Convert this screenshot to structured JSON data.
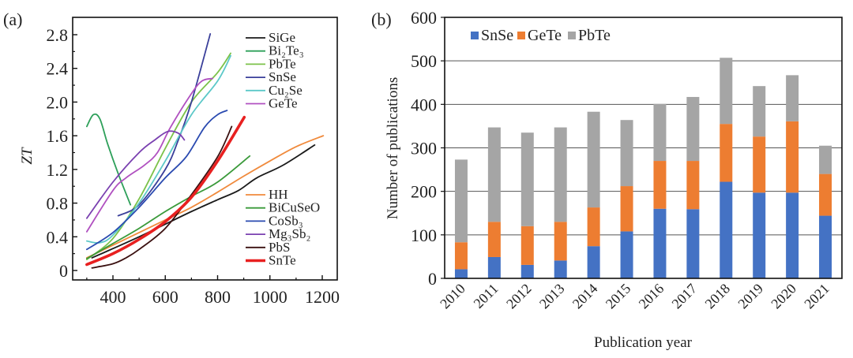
{
  "chart_data": [
    {
      "type": "line",
      "panel_label": "(a)",
      "title": "",
      "xlabel": "",
      "ylabel": "ZT",
      "xlim": [
        247,
        1256
      ],
      "ylim": [
        -0.1,
        3.0
      ],
      "xticks": [
        400,
        600,
        800,
        1000,
        1200
      ],
      "xtick_labels": [
        "400",
        "600",
        "800",
        "1000",
        "1200"
      ],
      "yticks": [
        0,
        0.4,
        0.8,
        1.2,
        1.6,
        2.0,
        2.4,
        2.8
      ],
      "ytick_labels": [
        "0",
        "0.4",
        "0.8",
        "1.2",
        "1.6",
        "2.0",
        "2.4",
        "2.8"
      ],
      "grid": false,
      "legend_placement": [
        "top-right",
        "bottom-right"
      ],
      "series": [
        {
          "name": "SiGe",
          "sub": "",
          "color": "#1a1a1a",
          "legend_group": 0,
          "points": [
            [
              320,
              0.15
            ],
            [
              400,
              0.26
            ],
            [
              500,
              0.4
            ],
            [
              600,
              0.55
            ],
            [
              700,
              0.7
            ],
            [
              800,
              0.84
            ],
            [
              880,
              0.95
            ],
            [
              950,
              1.1
            ],
            [
              1050,
              1.25
            ],
            [
              1171,
              1.49
            ]
          ]
        },
        {
          "name": "Bi₂Te₃",
          "color": "#2ea05a",
          "legend_group": 0,
          "points": [
            [
              300,
              1.71
            ],
            [
              325,
              1.85
            ],
            [
              350,
              1.8
            ],
            [
              380,
              1.5
            ],
            [
              420,
              1.15
            ],
            [
              467,
              0.78
            ]
          ]
        },
        {
          "name": "PbTe",
          "color": "#7cc24a",
          "legend_group": 0,
          "points": [
            [
              300,
              0.13
            ],
            [
              400,
              0.38
            ],
            [
              500,
              0.85
            ],
            [
              600,
              1.45
            ],
            [
              700,
              2.0
            ],
            [
              800,
              2.35
            ],
            [
              850,
              2.58
            ]
          ]
        },
        {
          "name": "SnSe",
          "color": "#3a3f9a",
          "legend_group": 0,
          "points": [
            [
              420,
              0.65
            ],
            [
              500,
              0.78
            ],
            [
              600,
              1.2
            ],
            [
              650,
              1.55
            ],
            [
              700,
              2.0
            ],
            [
              772,
              2.81
            ]
          ]
        },
        {
          "name": "Cu₂Se",
          "color": "#5cc8c8",
          "legend_group": 0,
          "points": [
            [
              300,
              0.35
            ],
            [
              350,
              0.33
            ],
            [
              400,
              0.42
            ],
            [
              500,
              0.8
            ],
            [
              600,
              1.3
            ],
            [
              700,
              1.85
            ],
            [
              800,
              2.25
            ],
            [
              850,
              2.55
            ]
          ]
        },
        {
          "name": "GeTe",
          "color": "#b050c0",
          "legend_group": 0,
          "points": [
            [
              300,
              0.46
            ],
            [
              400,
              0.95
            ],
            [
              450,
              1.1
            ],
            [
              520,
              1.25
            ],
            [
              570,
              1.4
            ],
            [
              620,
              1.7
            ],
            [
              700,
              2.1
            ],
            [
              740,
              2.25
            ],
            [
              781,
              2.28
            ]
          ]
        },
        {
          "name": "HH",
          "color": "#f08a3c",
          "legend_group": 1,
          "points": [
            [
              300,
              0.15
            ],
            [
              400,
              0.3
            ],
            [
              500,
              0.45
            ],
            [
              600,
              0.6
            ],
            [
              700,
              0.75
            ],
            [
              800,
              0.93
            ],
            [
              900,
              1.12
            ],
            [
              1000,
              1.3
            ],
            [
              1100,
              1.47
            ],
            [
              1204,
              1.6
            ]
          ]
        },
        {
          "name": "BiCuSeO",
          "color": "#3a9a3a",
          "legend_group": 1,
          "points": [
            [
              300,
              0.14
            ],
            [
              400,
              0.32
            ],
            [
              500,
              0.5
            ],
            [
              600,
              0.7
            ],
            [
              700,
              0.88
            ],
            [
              800,
              1.05
            ],
            [
              923,
              1.36
            ]
          ]
        },
        {
          "name": "CoSb₃",
          "color": "#2a4ab0",
          "legend_group": 1,
          "points": [
            [
              300,
              0.25
            ],
            [
              400,
              0.45
            ],
            [
              500,
              0.75
            ],
            [
              600,
              1.1
            ],
            [
              680,
              1.35
            ],
            [
              750,
              1.7
            ],
            [
              800,
              1.85
            ],
            [
              836,
              1.9
            ]
          ]
        },
        {
          "name": "Mg₃Sb₂",
          "color": "#7a40b0",
          "legend_group": 1,
          "points": [
            [
              300,
              0.62
            ],
            [
              400,
              1.05
            ],
            [
              500,
              1.4
            ],
            [
              560,
              1.55
            ],
            [
              609,
              1.65
            ],
            [
              650,
              1.63
            ],
            [
              673,
              1.55
            ]
          ]
        },
        {
          "name": "PbS",
          "color": "#3a1010",
          "legend_group": 1,
          "points": [
            [
              320,
              0.03
            ],
            [
              400,
              0.08
            ],
            [
              450,
              0.15
            ],
            [
              500,
              0.25
            ],
            [
              600,
              0.5
            ],
            [
              700,
              0.9
            ],
            [
              800,
              1.35
            ],
            [
              854,
              1.71
            ]
          ]
        },
        {
          "name": "SnTe",
          "color": "#e82020",
          "legend_group": 1,
          "bold": true,
          "points": [
            [
              300,
              0.07
            ],
            [
              400,
              0.2
            ],
            [
              500,
              0.37
            ],
            [
              600,
              0.58
            ],
            [
              700,
              0.87
            ],
            [
              800,
              1.3
            ],
            [
              902,
              1.82
            ]
          ]
        }
      ]
    },
    {
      "type": "bar",
      "stacked": true,
      "panel_label": "(b)",
      "title": "",
      "xlabel": "Publication year",
      "ylabel": "Number of publications",
      "ylim": [
        0,
        600
      ],
      "yticks": [
        0,
        100,
        200,
        300,
        400,
        500,
        600
      ],
      "ytick_labels": [
        "0",
        "100",
        "200",
        "300",
        "400",
        "500",
        "600"
      ],
      "grid": true,
      "legend_placement": "top-left",
      "categories": [
        "2010",
        "2011",
        "2012",
        "2013",
        "2014",
        "2015",
        "2016",
        "2017",
        "2018",
        "2019",
        "2020",
        "2021"
      ],
      "series": [
        {
          "name": "SnSe",
          "color": "#4472c4",
          "values": [
            21,
            49,
            31,
            41,
            74,
            108,
            160,
            159,
            222,
            197,
            197,
            144
          ]
        },
        {
          "name": "GeTe",
          "color": "#ed7d31",
          "values": [
            62,
            81,
            89,
            89,
            89,
            104,
            110,
            111,
            133,
            129,
            164,
            96
          ]
        },
        {
          "name": "PbTe",
          "color": "#a5a5a5",
          "values": [
            190,
            217,
            215,
            217,
            220,
            152,
            131,
            147,
            152,
            116,
            106,
            65
          ]
        }
      ]
    }
  ]
}
